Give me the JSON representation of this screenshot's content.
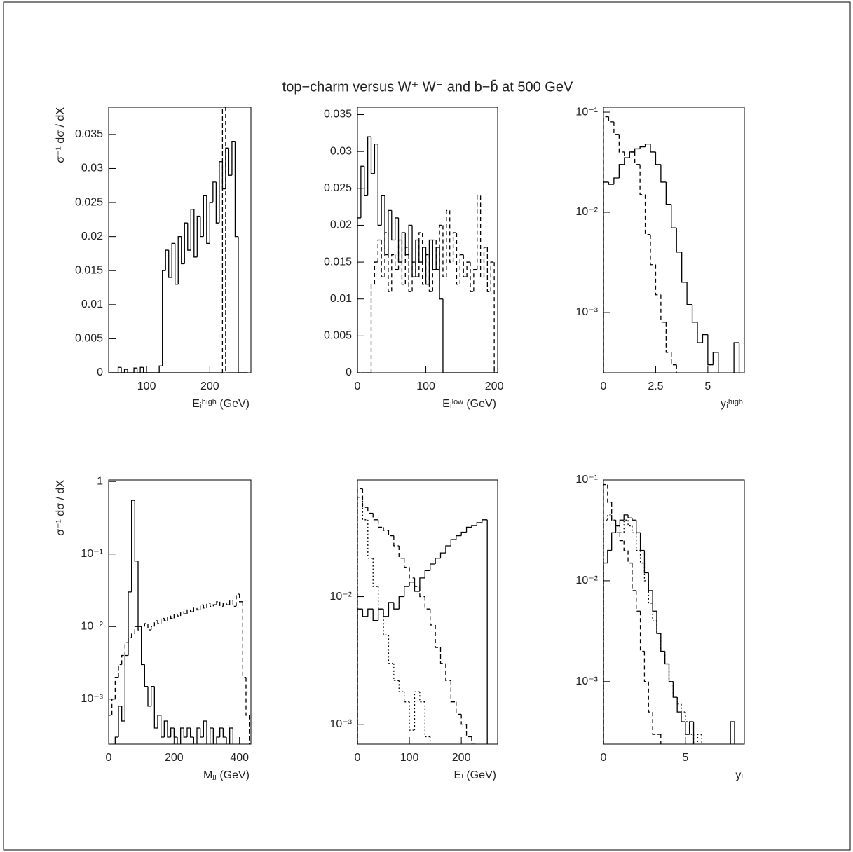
{
  "title": "top−charm versus W⁺ W⁻  and b−b̄ at  500 GeV",
  "chart_data": [
    {
      "type": "histogram",
      "ylabel": "σ⁻¹ dσ / dX",
      "xlabel": "Eⱼʰⁱᵍʰ (GeV)",
      "log_y": false,
      "xlim": [
        40,
        265
      ],
      "ylim": [
        0,
        0.039
      ],
      "xticks": [
        100,
        200
      ],
      "yticks": [
        0,
        0.005,
        0.01,
        0.015,
        0.02,
        0.025,
        0.03,
        0.035
      ],
      "bins": [
        40,
        45,
        50,
        55,
        60,
        65,
        70,
        75,
        80,
        85,
        90,
        95,
        100,
        105,
        110,
        115,
        120,
        125,
        130,
        135,
        140,
        145,
        150,
        155,
        160,
        165,
        170,
        175,
        180,
        185,
        190,
        195,
        200,
        205,
        210,
        215,
        220,
        225,
        230,
        235,
        240,
        245,
        250,
        255,
        260
      ],
      "series": [
        {
          "style": "solid",
          "color": "#000000",
          "values": [
            0,
            0,
            0,
            0.0008,
            0,
            0.0005,
            0,
            0,
            0.0007,
            0,
            0.0008,
            0,
            0,
            0,
            0,
            0,
            0.001,
            0.015,
            0.018,
            0.014,
            0.019,
            0.013,
            0.02,
            0.016,
            0.022,
            0.018,
            0.024,
            0.017,
            0.023,
            0.02,
            0.026,
            0.019,
            0.025,
            0.028,
            0.022,
            0.031,
            0.027,
            0.033,
            0.029,
            0.034,
            0.02,
            0,
            0,
            0
          ]
        },
        {
          "style": "dashed",
          "color": "#000000",
          "values": [
            0,
            0,
            0,
            0,
            0,
            0,
            0,
            0,
            0,
            0,
            0,
            0,
            0,
            0,
            0,
            0,
            0,
            0,
            0,
            0,
            0,
            0,
            0,
            0,
            0,
            0,
            0,
            0,
            0,
            0,
            0,
            0,
            0,
            0,
            0,
            0,
            0.039,
            0,
            0,
            0,
            0,
            0,
            0,
            0
          ]
        }
      ]
    },
    {
      "type": "histogram",
      "xlabel": "Eⱼˡᵒʷ (GeV)",
      "log_y": false,
      "xlim": [
        0,
        205
      ],
      "ylim": [
        0,
        0.036
      ],
      "xticks": [
        0,
        100,
        200
      ],
      "yticks": [
        0,
        0.005,
        0.01,
        0.015,
        0.02,
        0.025,
        0.03,
        0.035
      ],
      "bins": [
        0,
        5,
        10,
        15,
        20,
        25,
        30,
        35,
        40,
        45,
        50,
        55,
        60,
        65,
        70,
        75,
        80,
        85,
        90,
        95,
        100,
        105,
        110,
        115,
        120,
        125,
        130,
        135,
        140,
        145,
        150,
        155,
        160,
        165,
        170,
        175,
        180,
        185,
        190,
        195,
        200,
        205
      ],
      "series": [
        {
          "style": "solid",
          "color": "#000000",
          "values": [
            0.021,
            0.028,
            0.024,
            0.032,
            0.027,
            0.031,
            0.02,
            0.024,
            0.016,
            0.022,
            0.018,
            0.021,
            0.015,
            0.019,
            0.016,
            0.02,
            0.013,
            0.018,
            0.015,
            0.017,
            0.012,
            0.018,
            0.014,
            0.017,
            0.01,
            0,
            0,
            0,
            0,
            0,
            0,
            0,
            0,
            0,
            0,
            0,
            0,
            0,
            0,
            0,
            0
          ]
        },
        {
          "style": "dashed",
          "color": "#000000",
          "values": [
            0,
            0,
            0,
            0,
            0.012,
            0.015,
            0.018,
            0.013,
            0.019,
            0.011,
            0.016,
            0.014,
            0.018,
            0.012,
            0.017,
            0.011,
            0.015,
            0.013,
            0.019,
            0.012,
            0.016,
            0.011,
            0.018,
            0.014,
            0.02,
            0.013,
            0.022,
            0.015,
            0.019,
            0.012,
            0.016,
            0.013,
            0.015,
            0.011,
            0.014,
            0.024,
            0.013,
            0.017,
            0.011,
            0.015,
            0
          ]
        }
      ]
    },
    {
      "type": "histogram",
      "xlabel": "yⱼʰⁱᵍʰ",
      "log_y": true,
      "xlim": [
        0,
        6.75
      ],
      "ylim": [
        0.00025,
        0.112
      ],
      "xticks": [
        0,
        2.5,
        5
      ],
      "yticks": [
        {
          "value": 0.1,
          "label": "10⁻¹"
        },
        {
          "value": 0.01,
          "label": "10⁻²"
        },
        {
          "value": 0.001,
          "label": "10⁻³"
        }
      ],
      "bins": [
        0,
        0.25,
        0.5,
        0.75,
        1,
        1.25,
        1.5,
        1.75,
        2,
        2.25,
        2.5,
        2.75,
        3,
        3.25,
        3.5,
        3.75,
        4,
        4.25,
        4.5,
        4.75,
        5,
        5.25,
        5.5,
        5.75,
        6,
        6.25,
        6.5,
        6.75
      ],
      "series": [
        {
          "style": "solid",
          "color": "#000000",
          "values": [
            0.02,
            0.019,
            0.022,
            0.03,
            0.035,
            0.04,
            0.043,
            0.045,
            0.048,
            0.04,
            0.03,
            0.02,
            0.012,
            0.007,
            0.004,
            0.002,
            0.0012,
            0.0008,
            0.0005,
            0.0006,
            0.0003,
            0.0004,
            0,
            0,
            0,
            0.0005,
            0
          ]
        },
        {
          "style": "dashed",
          "color": "#000000",
          "values": [
            0.09,
            0.08,
            0.06,
            0.04,
            0.035,
            0.04,
            0.03,
            0.015,
            0.006,
            0.003,
            0.0015,
            0.0008,
            0.0004,
            0.0003,
            0,
            0,
            0,
            0,
            0,
            0,
            0,
            0,
            0,
            0,
            0,
            0,
            0
          ]
        }
      ]
    },
    {
      "type": "histogram",
      "ylabel": "σ⁻¹ dσ / dX",
      "xlabel": "Mⱼⱼ (GeV)",
      "log_y": true,
      "xlim": [
        0,
        435
      ],
      "ylim": [
        0.00024,
        1.05
      ],
      "xticks": [
        0,
        200,
        400
      ],
      "yticks": [
        1,
        {
          "value": 0.1,
          "label": "10⁻¹"
        },
        {
          "value": 0.01,
          "label": "10⁻²"
        },
        {
          "value": 0.001,
          "label": "10⁻³"
        }
      ],
      "bins": [
        0,
        10,
        20,
        30,
        40,
        50,
        60,
        70,
        80,
        90,
        100,
        110,
        120,
        130,
        140,
        150,
        160,
        170,
        180,
        190,
        200,
        210,
        220,
        230,
        240,
        250,
        260,
        270,
        280,
        290,
        300,
        310,
        320,
        330,
        340,
        350,
        360,
        370,
        380,
        390,
        400,
        410,
        420,
        430
      ],
      "series": [
        {
          "style": "solid",
          "color": "#000000",
          "values": [
            0,
            0,
            0.0003,
            0.0008,
            0.0005,
            0.004,
            0.03,
            0.55,
            0.08,
            0.01,
            0.003,
            0.0015,
            0.0008,
            0.0015,
            0.0004,
            0.0006,
            0.0003,
            0.0005,
            0.0003,
            0.0004,
            0.0003,
            0,
            0.0004,
            0.0003,
            0.0004,
            0.0003,
            0,
            0.0004,
            0.0003,
            0.0005,
            0,
            0.0004,
            0,
            0.0003,
            0.0004,
            0.0003,
            0,
            0.0004,
            0,
            0,
            0,
            0,
            0
          ]
        },
        {
          "style": "dashed",
          "color": "#000000",
          "values": [
            0.0006,
            0.001,
            0.002,
            0.003,
            0.004,
            0.006,
            0.007,
            0.008,
            0.01,
            0.009,
            0.01,
            0.011,
            0.009,
            0.01,
            0.012,
            0.011,
            0.013,
            0.012,
            0.014,
            0.013,
            0.015,
            0.014,
            0.016,
            0.015,
            0.017,
            0.016,
            0.018,
            0.017,
            0.02,
            0.018,
            0.021,
            0.019,
            0.02,
            0.022,
            0.019,
            0.021,
            0.02,
            0.023,
            0.019,
            0.028,
            0.022,
            0.002,
            0.0006
          ]
        }
      ]
    },
    {
      "type": "histogram",
      "xlabel": "Eₗ (GeV)",
      "log_y": true,
      "xlim": [
        0,
        270
      ],
      "ylim": [
        0.0007,
        0.082
      ],
      "xticks": [
        0,
        100,
        200
      ],
      "yticks": [
        {
          "value": 0.01,
          "label": "10⁻²"
        },
        {
          "value": 0.001,
          "label": "10⁻³"
        }
      ],
      "bins": [
        0,
        10,
        20,
        30,
        40,
        50,
        60,
        70,
        80,
        90,
        100,
        110,
        120,
        130,
        140,
        150,
        160,
        170,
        180,
        190,
        200,
        210,
        220,
        230,
        240,
        250
      ],
      "series": [
        {
          "style": "solid",
          "color": "#000000",
          "values": [
            0.008,
            0.007,
            0.008,
            0.0065,
            0.008,
            0.007,
            0.009,
            0.008,
            0.01,
            0.012,
            0.013,
            0.011,
            0.014,
            0.016,
            0.018,
            0.02,
            0.022,
            0.025,
            0.028,
            0.03,
            0.032,
            0.035,
            0.036,
            0.038,
            0.04
          ]
        },
        {
          "style": "dashed",
          "color": "#000000",
          "values": [
            0.07,
            0.05,
            0.045,
            0.04,
            0.035,
            0.033,
            0.03,
            0.025,
            0.02,
            0.017,
            0.014,
            0.012,
            0.01,
            0.008,
            0.006,
            0.004,
            0.003,
            0.0022,
            0.0015,
            0.0012,
            0.001,
            0.0008,
            0.0007,
            0,
            0
          ]
        },
        {
          "style": "dotted",
          "color": "#000000",
          "values": [
            0.06,
            0.04,
            0.02,
            0.012,
            0.008,
            0.005,
            0.003,
            0.0022,
            0.0018,
            0.0015,
            0.0009,
            0.0018,
            0.0015,
            0.0008,
            0,
            0,
            0,
            0,
            0,
            0,
            0,
            0,
            0,
            0,
            0
          ]
        }
      ]
    },
    {
      "type": "histogram",
      "xlabel": "yₗ",
      "log_y": true,
      "xlim": [
        0,
        8.6
      ],
      "ylim": [
        0.00024,
        0.1
      ],
      "xticks": [
        0,
        5
      ],
      "yticks": [
        {
          "value": 0.1,
          "label": "10⁻¹"
        },
        {
          "value": 0.01,
          "label": "10⁻²"
        },
        {
          "value": 0.001,
          "label": "10⁻³"
        }
      ],
      "bins": [
        0,
        0.25,
        0.5,
        0.75,
        1,
        1.25,
        1.5,
        1.75,
        2,
        2.25,
        2.5,
        2.75,
        3,
        3.25,
        3.5,
        3.75,
        4,
        4.25,
        4.5,
        4.75,
        5,
        5.25,
        5.5,
        5.75,
        6,
        6.25,
        6.5,
        6.75,
        7,
        7.25,
        7.5,
        7.75,
        8,
        8.25,
        8.5
      ],
      "series": [
        {
          "style": "solid",
          "color": "#000000",
          "values": [
            0.015,
            0.02,
            0.03,
            0.035,
            0.04,
            0.045,
            0.042,
            0.04,
            0.03,
            0.02,
            0.012,
            0.008,
            0.005,
            0.003,
            0.002,
            0.0015,
            0.001,
            0.0007,
            0.0005,
            0.0004,
            0.0003,
            0.0004,
            0,
            0,
            0,
            0,
            0,
            0,
            0,
            0,
            0,
            0.0004,
            0,
            0
          ]
        },
        {
          "style": "dashed",
          "color": "#000000",
          "values": [
            0.09,
            0.06,
            0.04,
            0.03,
            0.025,
            0.02,
            0.015,
            0.008,
            0.005,
            0.002,
            0.001,
            0.0005,
            0.0003,
            0.0003,
            0,
            0,
            0,
            0,
            0,
            0,
            0,
            0,
            0,
            0,
            0,
            0,
            0,
            0,
            0,
            0,
            0,
            0,
            0,
            0
          ]
        },
        {
          "style": "dotted",
          "color": "#000000",
          "values": [
            0.04,
            0.045,
            0.04,
            0.035,
            0.03,
            0.04,
            0.035,
            0.03,
            0.02,
            0.015,
            0.01,
            0.006,
            0.004,
            0.003,
            0.002,
            0.0015,
            0.001,
            0.0007,
            0.0006,
            0.0005,
            0.0004,
            0.0003,
            0,
            0.0003,
            0,
            0,
            0,
            0,
            0,
            0,
            0,
            0,
            0,
            0
          ]
        }
      ]
    }
  ]
}
